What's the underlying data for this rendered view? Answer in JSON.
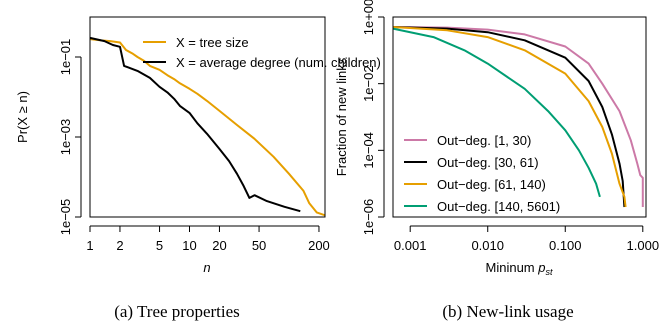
{
  "chart_data": [
    {
      "type": "line",
      "caption": "(a) Tree properties",
      "xlabel": "n",
      "ylabel": "Pr(X ≥ n)",
      "x_scale": "log",
      "y_scale": "log",
      "xlim": [
        1,
        230
      ],
      "ylim": [
        1e-05,
        1
      ],
      "x_ticks": [
        1,
        2,
        5,
        10,
        20,
        50,
        200
      ],
      "x_tick_labels": [
        "1",
        "2",
        "5",
        "10",
        "20",
        "50",
        "200"
      ],
      "y_ticks": [
        1e-05,
        0.001,
        0.1
      ],
      "y_tick_labels": [
        "1e−05",
        "1e−03",
        "1e−01"
      ],
      "grid": false,
      "legend_position": "top-right",
      "series": [
        {
          "name": "X = tree size",
          "color": "#E69F00",
          "points": [
            [
              1,
              0.28
            ],
            [
              1.3,
              0.26
            ],
            [
              1.6,
              0.25
            ],
            [
              2,
              0.23
            ],
            [
              2.3,
              0.15
            ],
            [
              2.7,
              0.12
            ],
            [
              3,
              0.1
            ],
            [
              3.5,
              0.08
            ],
            [
              4,
              0.06
            ],
            [
              5,
              0.048
            ],
            [
              6,
              0.035
            ],
            [
              7,
              0.028
            ],
            [
              8,
              0.022
            ],
            [
              10,
              0.016
            ],
            [
              12,
              0.012
            ],
            [
              15,
              0.008
            ],
            [
              20,
              0.0045
            ],
            [
              30,
              0.002
            ],
            [
              45,
              0.0009
            ],
            [
              70,
              0.00032
            ],
            [
              100,
              0.00012
            ],
            [
              140,
              4.5e-05
            ],
            [
              160,
              2.2e-05
            ],
            [
              190,
              1.3e-05
            ],
            [
              230,
              1.1e-05
            ]
          ]
        },
        {
          "name": "X = average degree (num. children)",
          "color": "#000000",
          "points": [
            [
              1,
              0.3
            ],
            [
              1.4,
              0.25
            ],
            [
              1.7,
              0.2
            ],
            [
              2,
              0.18
            ],
            [
              2.2,
              0.06
            ],
            [
              3,
              0.045
            ],
            [
              4,
              0.03
            ],
            [
              5,
              0.018
            ],
            [
              6,
              0.013
            ],
            [
              7,
              0.009
            ],
            [
              8,
              0.006
            ],
            [
              10,
              0.004
            ],
            [
              12,
              0.0022
            ],
            [
              15,
              0.0012
            ],
            [
              20,
              0.0005
            ],
            [
              25,
              0.00025
            ],
            [
              30,
              0.00012
            ],
            [
              35,
              6e-05
            ],
            [
              40,
              3e-05
            ],
            [
              45,
              3.5e-05
            ],
            [
              60,
              2.5e-05
            ],
            [
              90,
              1.8e-05
            ],
            [
              130,
              1.4e-05
            ]
          ]
        }
      ]
    },
    {
      "type": "line",
      "caption": "(b) New-link usage",
      "xlabel": "Mininum p_st",
      "ylabel": "Fraction of new links",
      "x_scale": "log",
      "y_scale": "log",
      "xlim": [
        0.0006,
        1.1
      ],
      "ylim": [
        1e-06,
        1
      ],
      "x_ticks": [
        0.001,
        0.01,
        0.1,
        1
      ],
      "x_tick_labels": [
        "0.001",
        "0.010",
        "0.100",
        "1.000"
      ],
      "y_ticks": [
        1e-06,
        0.0001,
        0.01,
        1
      ],
      "y_tick_labels": [
        "1e−06",
        "1e−04",
        "1e−02",
        "1e+00"
      ],
      "grid": false,
      "legend_position": "bottom-left",
      "series": [
        {
          "name": "Out−deg. [1, 30)",
          "color": "#CC79A7",
          "points": [
            [
              0.0006,
              0.5
            ],
            [
              0.003,
              0.48
            ],
            [
              0.01,
              0.42
            ],
            [
              0.03,
              0.3
            ],
            [
              0.1,
              0.13
            ],
            [
              0.2,
              0.04
            ],
            [
              0.3,
              0.01
            ],
            [
              0.5,
              0.0015
            ],
            [
              0.7,
              0.0002
            ],
            [
              0.85,
              4e-05
            ],
            [
              0.93,
              1.8e-05
            ],
            [
              1.0,
              1.5e-05
            ],
            [
              1.0,
              2e-06
            ]
          ]
        },
        {
          "name": "Out−deg. [30, 61)",
          "color": "#000000",
          "points": [
            [
              0.0006,
              0.5
            ],
            [
              0.003,
              0.45
            ],
            [
              0.01,
              0.35
            ],
            [
              0.03,
              0.2
            ],
            [
              0.1,
              0.06
            ],
            [
              0.2,
              0.012
            ],
            [
              0.3,
              0.002
            ],
            [
              0.4,
              0.0003
            ],
            [
              0.5,
              4e-05
            ],
            [
              0.55,
              1.2e-05
            ],
            [
              0.58,
              2e-06
            ]
          ]
        },
        {
          "name": "Out−deg. [61, 140)",
          "color": "#E69F00",
          "points": [
            [
              0.0006,
              0.5
            ],
            [
              0.003,
              0.4
            ],
            [
              0.01,
              0.25
            ],
            [
              0.03,
              0.1
            ],
            [
              0.1,
              0.02
            ],
            [
              0.2,
              0.003
            ],
            [
              0.3,
              0.0005
            ],
            [
              0.4,
              8e-05
            ],
            [
              0.5,
              1e-05
            ],
            [
              0.58,
              4e-06
            ],
            [
              0.6,
              2e-06
            ]
          ]
        },
        {
          "name": "Out−deg. [140, 5601)",
          "color": "#009E73",
          "points": [
            [
              0.0006,
              0.45
            ],
            [
              0.002,
              0.25
            ],
            [
              0.005,
              0.1
            ],
            [
              0.01,
              0.04
            ],
            [
              0.03,
              0.007
            ],
            [
              0.06,
              0.0015
            ],
            [
              0.1,
              0.0004
            ],
            [
              0.15,
              0.0001
            ],
            [
              0.2,
              3e-05
            ],
            [
              0.25,
              1e-05
            ],
            [
              0.28,
              4e-06
            ]
          ]
        }
      ]
    }
  ]
}
